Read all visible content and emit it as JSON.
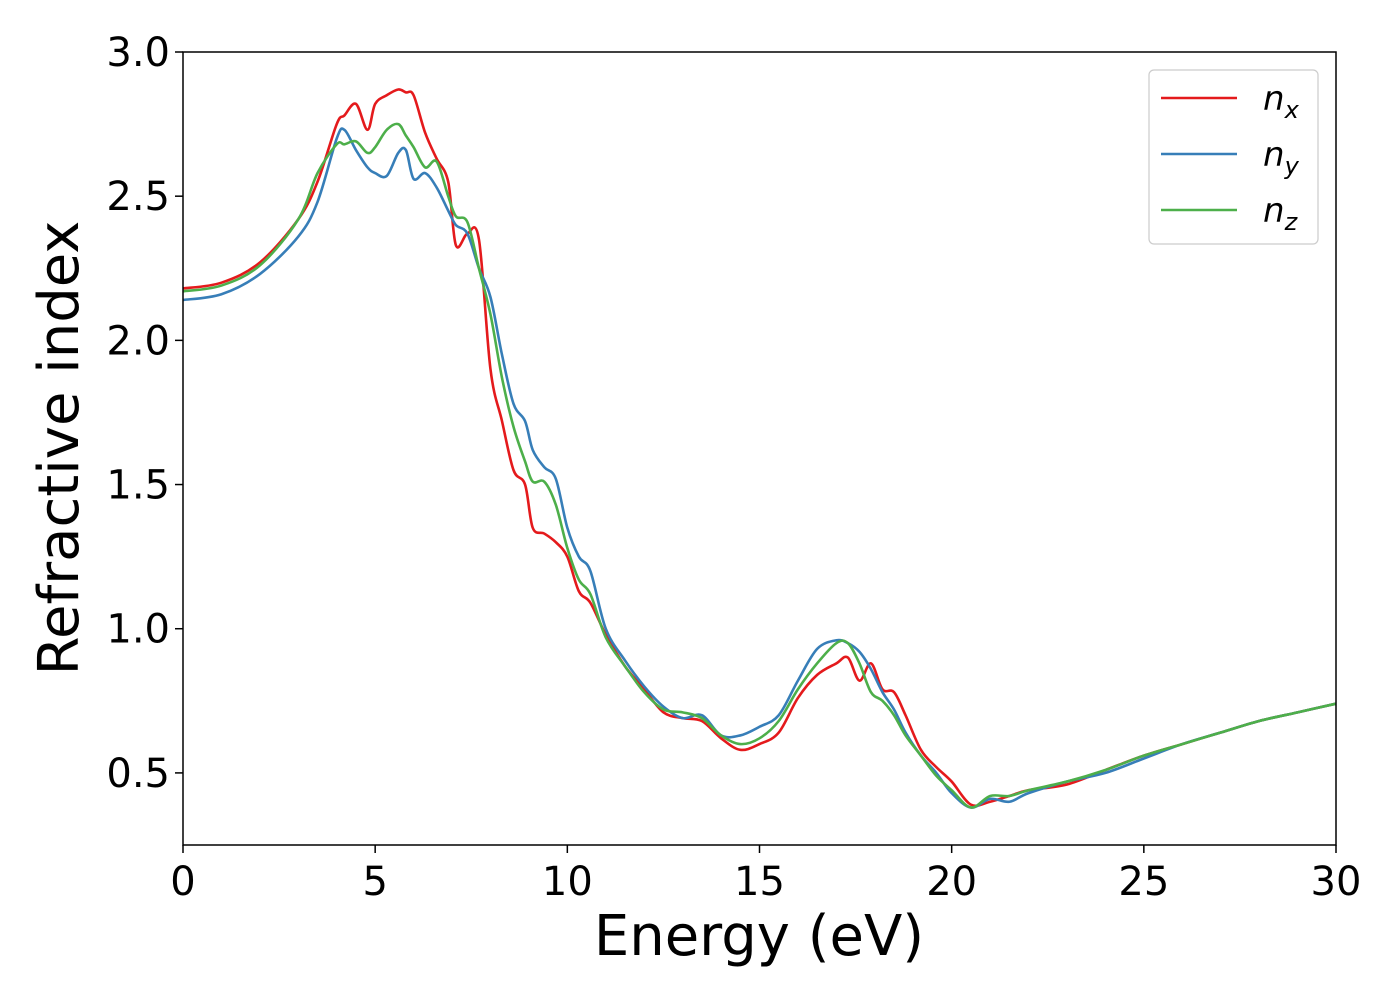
{
  "chart_data": {
    "type": "line",
    "title": "",
    "xlabel": "Energy (eV)",
    "ylabel": "Refractive index",
    "xlim": [
      0,
      30
    ],
    "ylim": [
      0.25,
      3.0
    ],
    "xticks": [
      0,
      5,
      10,
      15,
      20,
      25,
      30
    ],
    "xtick_labels": [
      "0",
      "5",
      "10",
      "15",
      "20",
      "25",
      "30"
    ],
    "yticks": [
      0.5,
      1.0,
      1.5,
      2.0,
      2.5,
      3.0
    ],
    "ytick_labels": [
      "0.5",
      "1.0",
      "1.5",
      "2.0",
      "2.5",
      "3.0"
    ],
    "grid": false,
    "legend_position": "top-right",
    "series": [
      {
        "name": "n_x",
        "label_base": "n",
        "label_sub": "x",
        "color": "#e41a1c",
        "x": [
          0,
          1,
          2,
          3,
          3.5,
          4,
          4.2,
          4.5,
          4.8,
          5,
          5.3,
          5.6,
          5.8,
          6,
          6.3,
          6.6,
          6.9,
          7.1,
          7.4,
          7.7,
          8,
          8.3,
          8.6,
          8.9,
          9.1,
          9.4,
          9.7,
          10,
          10.3,
          10.6,
          11,
          11.5,
          12,
          12.5,
          13,
          13.5,
          14,
          14.5,
          15,
          15.5,
          16,
          16.5,
          17,
          17.3,
          17.6,
          17.9,
          18.2,
          18.5,
          18.8,
          19.2,
          19.6,
          20,
          20.5,
          21,
          21.5,
          22,
          23,
          24,
          25,
          26,
          27,
          28,
          29,
          30
        ],
        "y": [
          2.18,
          2.2,
          2.27,
          2.42,
          2.55,
          2.75,
          2.78,
          2.82,
          2.73,
          2.82,
          2.85,
          2.87,
          2.86,
          2.85,
          2.72,
          2.63,
          2.55,
          2.33,
          2.37,
          2.35,
          1.9,
          1.72,
          1.55,
          1.5,
          1.35,
          1.33,
          1.3,
          1.25,
          1.13,
          1.09,
          0.98,
          0.87,
          0.79,
          0.71,
          0.69,
          0.68,
          0.62,
          0.58,
          0.6,
          0.64,
          0.76,
          0.84,
          0.88,
          0.9,
          0.82,
          0.88,
          0.79,
          0.78,
          0.7,
          0.58,
          0.52,
          0.47,
          0.39,
          0.4,
          0.42,
          0.44,
          0.46,
          0.51,
          0.56,
          0.6,
          0.64,
          0.68,
          0.71,
          0.74
        ]
      },
      {
        "name": "n_y",
        "label_base": "n",
        "label_sub": "y",
        "color": "#377eb8",
        "x": [
          0,
          1,
          2,
          3,
          3.5,
          4,
          4.2,
          4.5,
          4.8,
          5,
          5.3,
          5.6,
          5.8,
          6,
          6.3,
          6.6,
          6.9,
          7.1,
          7.4,
          7.7,
          8,
          8.3,
          8.6,
          8.9,
          9.1,
          9.4,
          9.7,
          10,
          10.3,
          10.6,
          11,
          11.5,
          12,
          12.5,
          13,
          13.5,
          14,
          14.5,
          15,
          15.5,
          16,
          16.5,
          17,
          17.3,
          17.6,
          17.9,
          18.2,
          18.5,
          18.8,
          19.2,
          19.6,
          20,
          20.5,
          21,
          21.5,
          22,
          23,
          24,
          25,
          26,
          27,
          28,
          29,
          30
        ],
        "y": [
          2.14,
          2.16,
          2.23,
          2.36,
          2.48,
          2.7,
          2.73,
          2.66,
          2.6,
          2.58,
          2.57,
          2.65,
          2.66,
          2.56,
          2.58,
          2.53,
          2.45,
          2.4,
          2.37,
          2.25,
          2.15,
          1.95,
          1.78,
          1.72,
          1.62,
          1.56,
          1.52,
          1.35,
          1.25,
          1.2,
          1.0,
          0.89,
          0.8,
          0.73,
          0.69,
          0.7,
          0.63,
          0.63,
          0.66,
          0.7,
          0.82,
          0.93,
          0.96,
          0.95,
          0.92,
          0.86,
          0.78,
          0.72,
          0.64,
          0.56,
          0.5,
          0.43,
          0.38,
          0.41,
          0.4,
          0.43,
          0.47,
          0.5,
          0.55,
          0.6,
          0.64,
          0.68,
          0.71,
          0.74
        ]
      },
      {
        "name": "n_z",
        "label_base": "n",
        "label_sub": "z",
        "color": "#4daf4a",
        "x": [
          0,
          1,
          2,
          3,
          3.5,
          4,
          4.2,
          4.5,
          4.8,
          5,
          5.3,
          5.6,
          5.8,
          6,
          6.3,
          6.6,
          6.9,
          7.1,
          7.4,
          7.7,
          8,
          8.3,
          8.6,
          8.9,
          9.1,
          9.4,
          9.7,
          10,
          10.3,
          10.6,
          11,
          11.5,
          12,
          12.5,
          13,
          13.5,
          14,
          14.5,
          15,
          15.5,
          16,
          16.5,
          17,
          17.3,
          17.6,
          17.9,
          18.2,
          18.5,
          18.8,
          19.2,
          19.6,
          20,
          20.5,
          21,
          21.5,
          22,
          23,
          24,
          25,
          26,
          27,
          28,
          29,
          30
        ],
        "y": [
          2.17,
          2.19,
          2.26,
          2.42,
          2.58,
          2.68,
          2.68,
          2.69,
          2.65,
          2.67,
          2.73,
          2.75,
          2.71,
          2.67,
          2.6,
          2.62,
          2.5,
          2.43,
          2.41,
          2.25,
          2.09,
          1.87,
          1.7,
          1.58,
          1.51,
          1.51,
          1.43,
          1.28,
          1.17,
          1.12,
          0.97,
          0.87,
          0.78,
          0.72,
          0.71,
          0.69,
          0.63,
          0.6,
          0.62,
          0.68,
          0.79,
          0.88,
          0.95,
          0.95,
          0.88,
          0.78,
          0.75,
          0.7,
          0.63,
          0.56,
          0.49,
          0.44,
          0.38,
          0.42,
          0.42,
          0.44,
          0.47,
          0.51,
          0.56,
          0.6,
          0.64,
          0.68,
          0.71,
          0.74
        ]
      }
    ]
  }
}
